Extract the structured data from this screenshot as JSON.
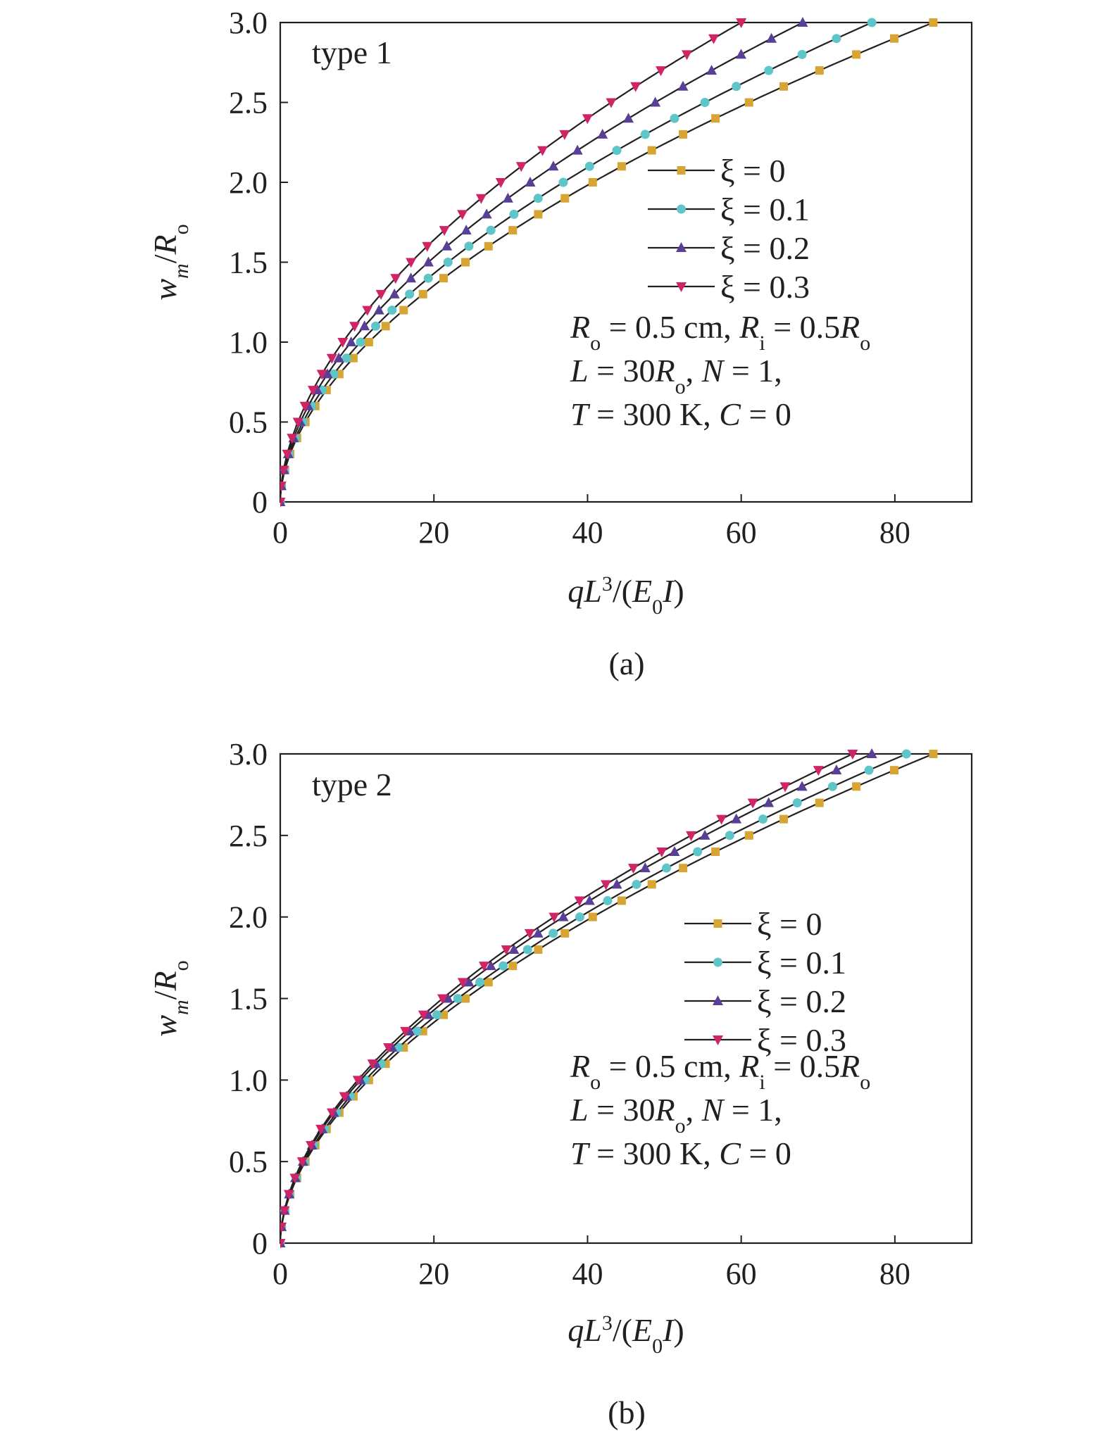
{
  "figure": {
    "x_axis_label": "qL3/(E0I)",
    "y_axis_label": "wm/Ro",
    "legend_labels": [
      "ξ = 0",
      "ξ = 0.1",
      "ξ = 0.2",
      "ξ = 0.3"
    ],
    "param_lines": [
      "Ro = 0.5 cm, Ri = 0.5Ro",
      "L = 30Ro, N = 1,",
      "T = 300 K, C = 0"
    ],
    "colors": {
      "xi_0": "#d6a533",
      "xi_0_1": "#5ec6c8",
      "xi_0_2": "#5a3f96",
      "xi_0_3": "#cf2466",
      "curve": "#231f20"
    },
    "markers": {
      "xi_0": "square",
      "xi_0_1": "circle",
      "xi_0_2": "triangle-up",
      "xi_0_3": "triangle-down"
    }
  },
  "chart_data": [
    {
      "type": "line",
      "panel_label": "(a)",
      "annotation": "type 1",
      "xlim": [
        0,
        90
      ],
      "ylim": [
        0,
        3.0
      ],
      "x_ticks": [
        0,
        20,
        40,
        60,
        80
      ],
      "y_ticks": [
        0,
        0.5,
        1.0,
        1.5,
        2.0,
        2.5,
        3.0
      ],
      "x_tick_labels": [
        "0",
        "20",
        "40",
        "60",
        "80"
      ],
      "y_tick_labels": [
        "0",
        "0.5",
        "1.0",
        "1.5",
        "2.0",
        "2.5",
        "3.0"
      ],
      "grid": false,
      "legend_position": "right-middle",
      "series": [
        {
          "name": "ξ = 0",
          "x_at_y3": 85
        },
        {
          "name": "ξ = 0.1",
          "x_at_y3": 77
        },
        {
          "name": "ξ = 0.2",
          "x_at_y3": 68
        },
        {
          "name": "ξ = 0.3",
          "x_at_y3": 60
        }
      ]
    },
    {
      "type": "line",
      "panel_label": "(b)",
      "annotation": "type 2",
      "xlim": [
        0,
        90
      ],
      "ylim": [
        0,
        3.0
      ],
      "x_ticks": [
        0,
        20,
        40,
        60,
        80
      ],
      "y_ticks": [
        0,
        0.5,
        1.0,
        1.5,
        2.0,
        2.5,
        3.0
      ],
      "x_tick_labels": [
        "0",
        "20",
        "40",
        "60",
        "80"
      ],
      "y_tick_labels": [
        "0",
        "0.5",
        "1.0",
        "1.5",
        "2.0",
        "2.5",
        "3.0"
      ],
      "grid": false,
      "legend_position": "right-middle",
      "series": [
        {
          "name": "ξ = 0",
          "x_at_y3": 85
        },
        {
          "name": "ξ = 0.1",
          "x_at_y3": 81.5
        },
        {
          "name": "ξ = 0.2",
          "x_at_y3": 77
        },
        {
          "name": "ξ = 0.3",
          "x_at_y3": 74.5
        }
      ]
    }
  ]
}
